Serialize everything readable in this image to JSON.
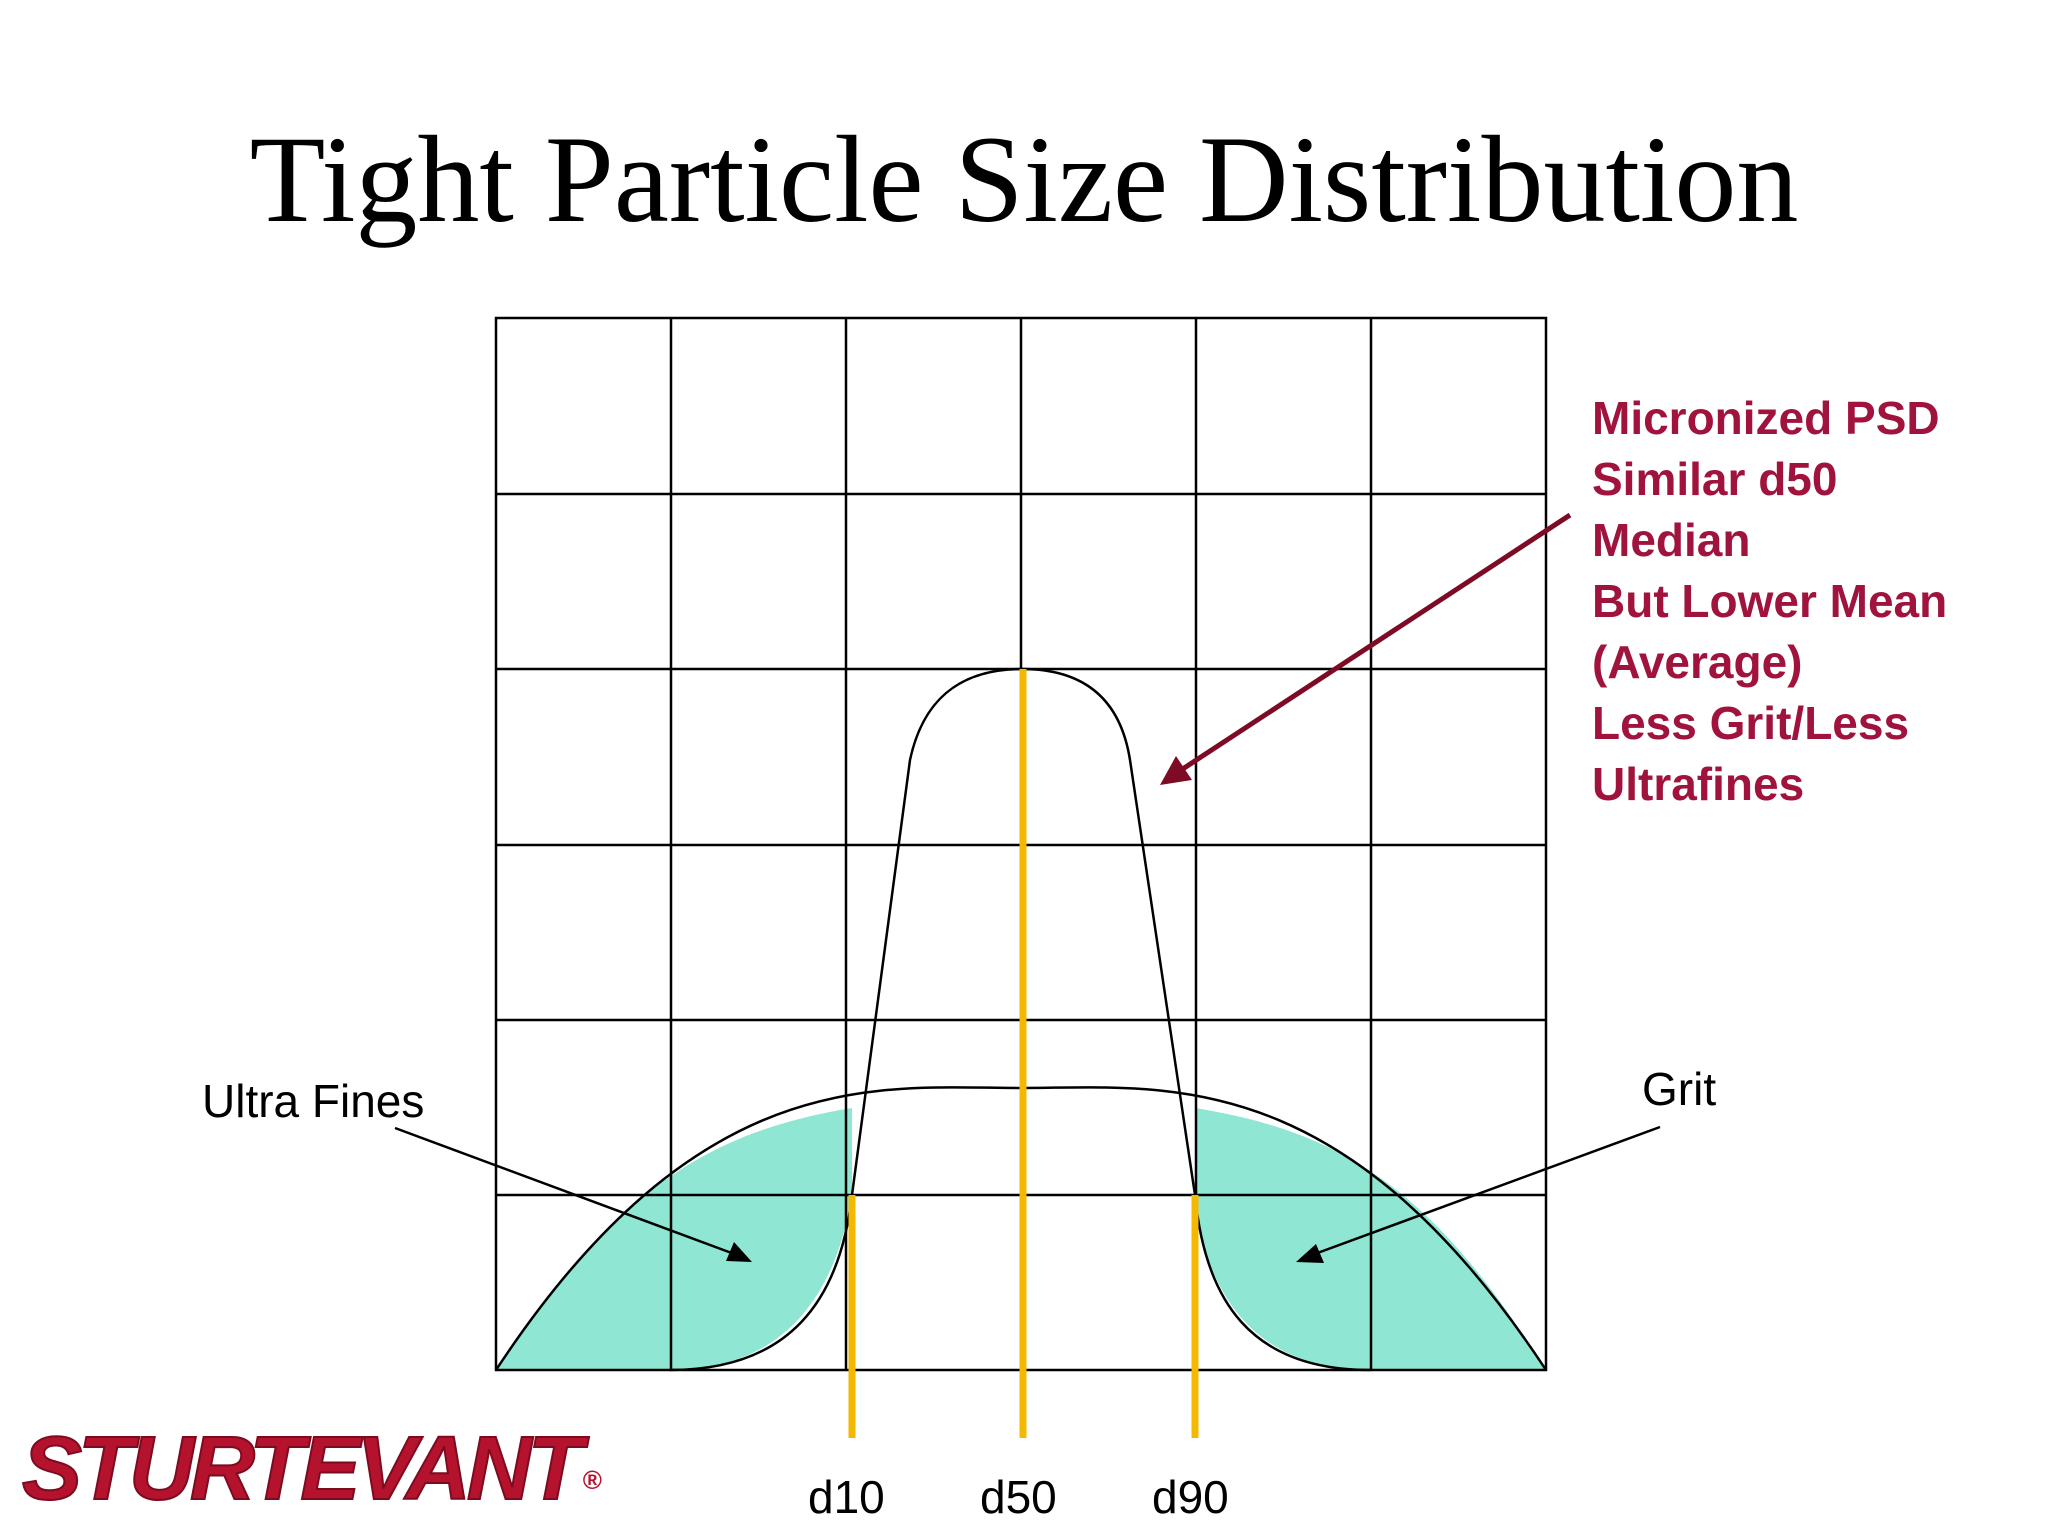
{
  "slide": {
    "title": "Tight Particle Size Distribution"
  },
  "note": {
    "lines": [
      "Micronized PSD",
      "Similar d50",
      "Median",
      "But Lower Mean",
      "(Average)",
      "Less Grit/Less",
      "Ultrafines"
    ],
    "color": "#a0133c"
  },
  "labels": {
    "ultra_fines": "Ultra Fines",
    "grit": "Grit",
    "d10": "d10",
    "d50": "d50",
    "d90": "d90"
  },
  "logo": {
    "text": "STURTEVANT",
    "registered": "®",
    "color": "#b5122e"
  },
  "colors": {
    "fill": "#8fe6d2",
    "marker": "#f5b800",
    "grid": "#000000"
  }
}
